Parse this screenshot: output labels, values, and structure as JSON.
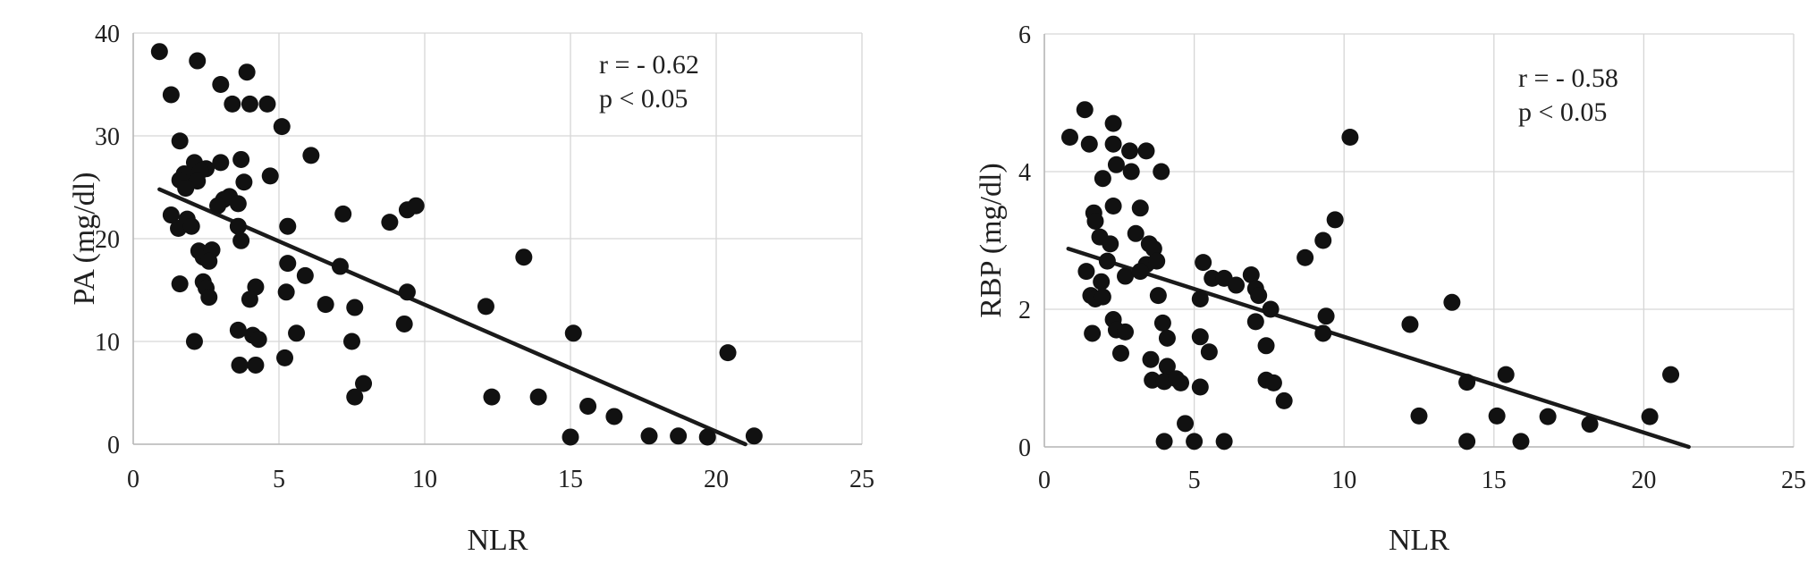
{
  "figure": {
    "background": "#ffffff",
    "colors": {
      "point": "#111111",
      "trend_line": "#1a1a1a",
      "gridline": "#d6d6d6",
      "axis_line": "#b8b8b8",
      "text": "#1f1f1f"
    }
  },
  "chart_data": [
    {
      "type": "scatter",
      "title": "",
      "xlabel": "NLR",
      "ylabel": "PA (mg/dl)",
      "xlim": [
        0,
        25
      ],
      "ylim": [
        0,
        40
      ],
      "xticks": [
        "0",
        "5",
        "10",
        "15",
        "20",
        "25"
      ],
      "ytick_values": [
        0,
        10,
        20,
        30,
        40
      ],
      "xtick_values": [
        0,
        5,
        10,
        15,
        20,
        25
      ],
      "yticks": [
        "0",
        "10",
        "20",
        "30",
        "40"
      ],
      "grid": true,
      "legend": "none",
      "annotation": {
        "lines": [
          "r = - 0.62",
          "p < 0.05"
        ]
      },
      "trendline": {
        "x1": 0.9,
        "y1": 24.8,
        "x2": 21.0,
        "y2": 0.0
      },
      "points": [
        [
          0.9,
          38.2
        ],
        [
          2.2,
          37.3
        ],
        [
          3.9,
          36.2
        ],
        [
          3.0,
          35.0
        ],
        [
          1.3,
          34.0
        ],
        [
          3.4,
          33.1
        ],
        [
          4.0,
          33.1
        ],
        [
          4.6,
          33.1
        ],
        [
          5.1,
          30.9
        ],
        [
          1.6,
          29.5
        ],
        [
          6.1,
          28.1
        ],
        [
          3.7,
          27.7
        ],
        [
          3.0,
          27.4
        ],
        [
          2.1,
          27.4
        ],
        [
          2.5,
          26.8
        ],
        [
          2.3,
          26.6
        ],
        [
          4.7,
          26.1
        ],
        [
          1.75,
          26.3
        ],
        [
          1.6,
          25.7
        ],
        [
          2.2,
          25.6
        ],
        [
          3.8,
          25.5
        ],
        [
          1.8,
          24.9
        ],
        [
          3.3,
          24.1
        ],
        [
          3.1,
          23.8
        ],
        [
          3.6,
          23.4
        ],
        [
          2.9,
          23.2
        ],
        [
          1.3,
          22.3
        ],
        [
          1.55,
          21.0
        ],
        [
          1.85,
          21.9
        ],
        [
          2.0,
          21.2
        ],
        [
          3.6,
          21.2
        ],
        [
          5.3,
          21.2
        ],
        [
          7.2,
          22.4
        ],
        [
          8.8,
          21.6
        ],
        [
          9.4,
          22.8
        ],
        [
          9.7,
          23.2
        ],
        [
          3.7,
          19.8
        ],
        [
          2.25,
          18.8
        ],
        [
          2.4,
          18.2
        ],
        [
          2.7,
          18.9
        ],
        [
          2.6,
          17.8
        ],
        [
          5.3,
          17.6
        ],
        [
          7.1,
          17.3
        ],
        [
          13.4,
          18.2
        ],
        [
          5.9,
          16.4
        ],
        [
          1.6,
          15.6
        ],
        [
          2.4,
          15.8
        ],
        [
          2.5,
          15.2
        ],
        [
          2.6,
          14.3
        ],
        [
          4.2,
          15.3
        ],
        [
          4.0,
          14.1
        ],
        [
          5.25,
          14.8
        ],
        [
          9.4,
          14.8
        ],
        [
          6.6,
          13.6
        ],
        [
          7.6,
          13.3
        ],
        [
          12.1,
          13.4
        ],
        [
          9.3,
          11.7
        ],
        [
          3.6,
          11.1
        ],
        [
          4.1,
          10.6
        ],
        [
          4.3,
          10.2
        ],
        [
          5.6,
          10.8
        ],
        [
          2.1,
          10.0
        ],
        [
          7.5,
          10.0
        ],
        [
          15.1,
          10.8
        ],
        [
          5.2,
          8.4
        ],
        [
          3.65,
          7.7
        ],
        [
          4.2,
          7.7
        ],
        [
          7.9,
          5.9
        ],
        [
          7.6,
          4.6
        ],
        [
          12.3,
          4.6
        ],
        [
          13.9,
          4.6
        ],
        [
          15.6,
          3.7
        ],
        [
          16.5,
          2.7
        ],
        [
          20.4,
          8.9
        ],
        [
          15.0,
          0.7
        ],
        [
          17.7,
          0.8
        ],
        [
          18.7,
          0.8
        ],
        [
          19.7,
          0.7
        ],
        [
          21.3,
          0.8
        ]
      ]
    },
    {
      "type": "scatter",
      "title": "",
      "xlabel": "NLR",
      "ylabel": "RBP (mg/dl)",
      "xlim": [
        0,
        25
      ],
      "ylim": [
        0,
        6
      ],
      "xticks": [
        "0",
        "5",
        "10",
        "15",
        "20",
        "25"
      ],
      "xtick_values": [
        0,
        5,
        10,
        15,
        20,
        25
      ],
      "ytick_values": [
        0,
        2,
        4,
        6
      ],
      "yticks": [
        "0",
        "2",
        "4",
        "6"
      ],
      "grid": true,
      "legend": "none",
      "annotation": {
        "lines": [
          "r = - 0.58",
          "p < 0.05"
        ]
      },
      "trendline": {
        "x1": 0.8,
        "y1": 2.88,
        "x2": 21.5,
        "y2": 0.0
      },
      "points": [
        [
          1.35,
          4.9
        ],
        [
          2.3,
          4.7
        ],
        [
          0.85,
          4.5
        ],
        [
          1.5,
          4.4
        ],
        [
          2.3,
          4.4
        ],
        [
          2.85,
          4.3
        ],
        [
          3.4,
          4.3
        ],
        [
          2.4,
          4.1
        ],
        [
          2.9,
          4.0
        ],
        [
          3.9,
          4.0
        ],
        [
          1.95,
          3.9
        ],
        [
          2.3,
          3.5
        ],
        [
          3.2,
          3.47
        ],
        [
          1.65,
          3.4
        ],
        [
          1.7,
          3.28
        ],
        [
          1.85,
          3.05
        ],
        [
          3.05,
          3.1
        ],
        [
          2.2,
          2.95
        ],
        [
          3.5,
          2.95
        ],
        [
          3.65,
          2.88
        ],
        [
          2.1,
          2.7
        ],
        [
          3.4,
          2.65
        ],
        [
          3.75,
          2.7
        ],
        [
          1.4,
          2.55
        ],
        [
          2.7,
          2.48
        ],
        [
          3.2,
          2.55
        ],
        [
          1.9,
          2.4
        ],
        [
          1.55,
          2.2
        ],
        [
          1.7,
          2.15
        ],
        [
          1.95,
          2.18
        ],
        [
          3.8,
          2.2
        ],
        [
          5.3,
          2.68
        ],
        [
          5.6,
          2.45
        ],
        [
          6.0,
          2.45
        ],
        [
          6.4,
          2.35
        ],
        [
          6.9,
          2.5
        ],
        [
          7.05,
          2.3
        ],
        [
          7.15,
          2.2
        ],
        [
          5.2,
          2.15
        ],
        [
          7.55,
          2.0
        ],
        [
          7.05,
          1.82
        ],
        [
          8.7,
          2.75
        ],
        [
          9.3,
          3.0
        ],
        [
          9.7,
          3.3
        ],
        [
          10.2,
          4.5
        ],
        [
          9.4,
          1.9
        ],
        [
          9.3,
          1.65
        ],
        [
          12.2,
          1.78
        ],
        [
          13.6,
          2.1
        ],
        [
          2.3,
          1.85
        ],
        [
          2.4,
          1.7
        ],
        [
          2.7,
          1.67
        ],
        [
          1.6,
          1.65
        ],
        [
          3.95,
          1.8
        ],
        [
          4.1,
          1.58
        ],
        [
          4.1,
          1.17
        ],
        [
          5.2,
          1.6
        ],
        [
          5.5,
          1.38
        ],
        [
          2.55,
          1.36
        ],
        [
          3.55,
          1.27
        ],
        [
          7.4,
          1.47
        ],
        [
          3.6,
          0.97
        ],
        [
          4.0,
          0.95
        ],
        [
          4.4,
          0.99
        ],
        [
          4.55,
          0.93
        ],
        [
          5.2,
          0.87
        ],
        [
          7.4,
          0.97
        ],
        [
          7.65,
          0.93
        ],
        [
          8.0,
          0.67
        ],
        [
          4.7,
          0.34
        ],
        [
          4.0,
          0.08
        ],
        [
          5.0,
          0.08
        ],
        [
          6.0,
          0.08
        ],
        [
          14.1,
          0.94
        ],
        [
          15.4,
          1.05
        ],
        [
          20.9,
          1.05
        ],
        [
          12.5,
          0.45
        ],
        [
          15.1,
          0.45
        ],
        [
          16.8,
          0.44
        ],
        [
          18.2,
          0.33
        ],
        [
          20.2,
          0.44
        ],
        [
          14.1,
          0.08
        ],
        [
          15.9,
          0.08
        ]
      ]
    }
  ]
}
